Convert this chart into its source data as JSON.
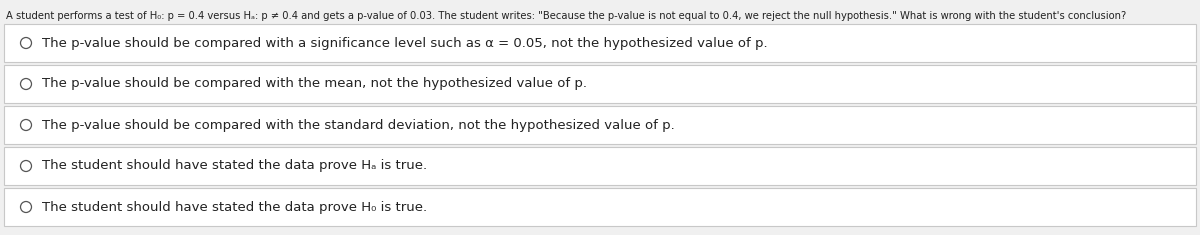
{
  "bg_color": "#f0f0f0",
  "box_bg": "#ffffff",
  "border_color": "#c8c8c8",
  "text_color": "#222222",
  "question_text": "A student performs a test of H₀: p = 0.4 versus Hₐ: p ≠ 0.4 and gets a p-value of 0.03. The student writes: \"Because the p-value is not equal to 0.4, we reject the null hypothesis.\" What is wrong with the student's conclusion?",
  "options": [
    "The p-value should be compared with a significance level such as α = 0.05, not the hypothesized value of p.",
    "The p-value should be compared with the mean, not the hypothesized value of p.",
    "The p-value should be compared with the standard deviation, not the hypothesized value of p.",
    "The student should have stated the data prove Hₐ is true.",
    "The student should have stated the data prove H₀ is true."
  ],
  "question_fontsize": 7.2,
  "option_fontsize": 9.5,
  "fig_width": 12.0,
  "fig_height": 2.35,
  "dpi": 100
}
